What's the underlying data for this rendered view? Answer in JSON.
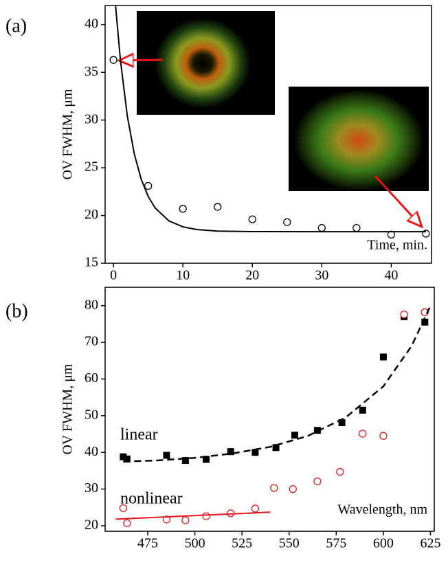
{
  "chart_data": [
    {
      "type": "scatter",
      "panel_label": "(a)",
      "y_label": "OV FWHM, μm",
      "x_label": "Time, min.",
      "xlim": [
        -1.2,
        45.8
      ],
      "xticks": [
        0,
        10,
        20,
        30,
        40
      ],
      "ylim": [
        15,
        42
      ],
      "yticks": [
        15,
        20,
        25,
        30,
        35,
        40
      ],
      "series": [
        {
          "color": "#000000",
          "marker": "open-circle",
          "x": [
            0,
            5,
            10,
            15,
            20,
            25,
            30,
            35,
            40,
            45
          ],
          "values": [
            36.3,
            23.1,
            20.7,
            20.9,
            19.6,
            19.3,
            18.7,
            18.7,
            18.0,
            18.1
          ]
        },
        {
          "color": "#000000",
          "marker": "line",
          "x": [
            0.3,
            1,
            2,
            3,
            4,
            5,
            6,
            8,
            10,
            12,
            15,
            20,
            30,
            45
          ],
          "values": [
            42.0,
            36.3,
            30.4,
            26.45,
            23.79,
            22.0,
            20.79,
            19.43,
            18.81,
            18.53,
            18.37,
            18.31,
            18.3,
            18.3
          ]
        }
      ]
    },
    {
      "type": "scatter",
      "panel_label": "(b)",
      "y_label": "OV FWHM, μm",
      "x_label": "Wavelength, nm",
      "xlim": [
        452.4,
        627
      ],
      "xticks": [
        475,
        500,
        525,
        550,
        575,
        600,
        625
      ],
      "ylim": [
        18.5,
        85
      ],
      "yticks": [
        20,
        30,
        40,
        50,
        60,
        70,
        80
      ],
      "series": [
        {
          "name": "linear",
          "color": "#000000",
          "marker": "square",
          "x": [
            462,
            464,
            485,
            495,
            506,
            519,
            532,
            543,
            553,
            565,
            578,
            589,
            600,
            611,
            622
          ],
          "values": [
            38.8,
            38.2,
            39.2,
            37.8,
            38.1,
            40.2,
            40.0,
            41.3,
            44.7,
            46.0,
            48.1,
            51.5,
            66.0,
            77.0,
            75.5
          ]
        },
        {
          "name": "nonlinear",
          "color": "#e8141a",
          "marker": "open-circle",
          "x": [
            462,
            464,
            485,
            495,
            506,
            519,
            532,
            542,
            552,
            565,
            577,
            589,
            600,
            611,
            622
          ],
          "values": [
            24.8,
            20.7,
            21.7,
            21.5,
            22.6,
            23.4,
            24.7,
            30.3,
            30.0,
            32.1,
            34.7,
            45.1,
            44.5,
            77.6,
            78.2
          ]
        },
        {
          "color": "#000000",
          "marker": "dashed-line",
          "x": [
            462,
            480,
            500,
            520,
            540,
            560,
            580,
            600,
            615,
            625
          ],
          "values": [
            37.5,
            37.8,
            38.5,
            39.7,
            41.5,
            44.5,
            49.5,
            58,
            69,
            80
          ]
        },
        {
          "color": "#e8141a",
          "marker": "line",
          "x": [
            458,
            540
          ],
          "values": [
            21.8,
            23.7
          ]
        }
      ]
    }
  ]
}
